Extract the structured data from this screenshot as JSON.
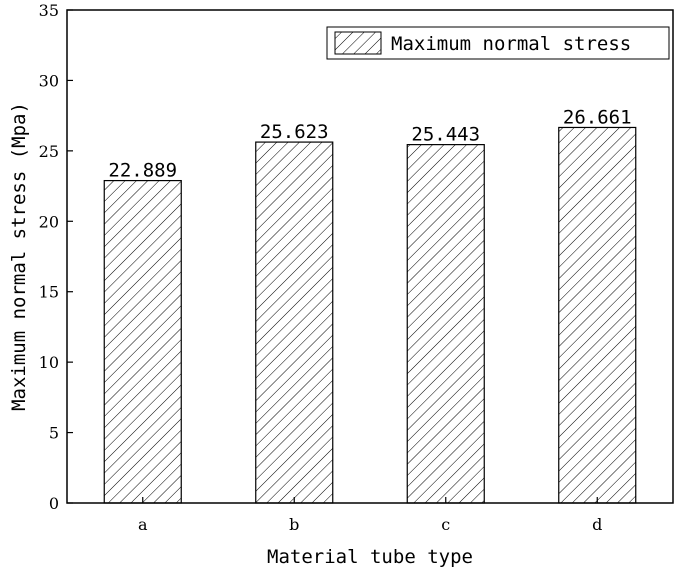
{
  "chart_data": {
    "type": "bar",
    "categories": [
      "a",
      "b",
      "c",
      "d"
    ],
    "series": [
      {
        "name": "Maximum normal stress",
        "values": [
          22.889,
          25.623,
          25.443,
          26.661
        ]
      }
    ],
    "data_labels": [
      "22.889",
      "25.623",
      "25.443",
      "26.661"
    ],
    "xlabel": "Material tube type",
    "ylabel": "Maximum normal stress (Mpa)",
    "ylim": [
      0,
      35
    ],
    "yticks": [
      0,
      5,
      10,
      15,
      20,
      25,
      30,
      35
    ],
    "grid": false,
    "legend": "top-right",
    "bar_fill": "hatched",
    "colors": {
      "line": "#000000",
      "background": "#ffffff"
    }
  }
}
